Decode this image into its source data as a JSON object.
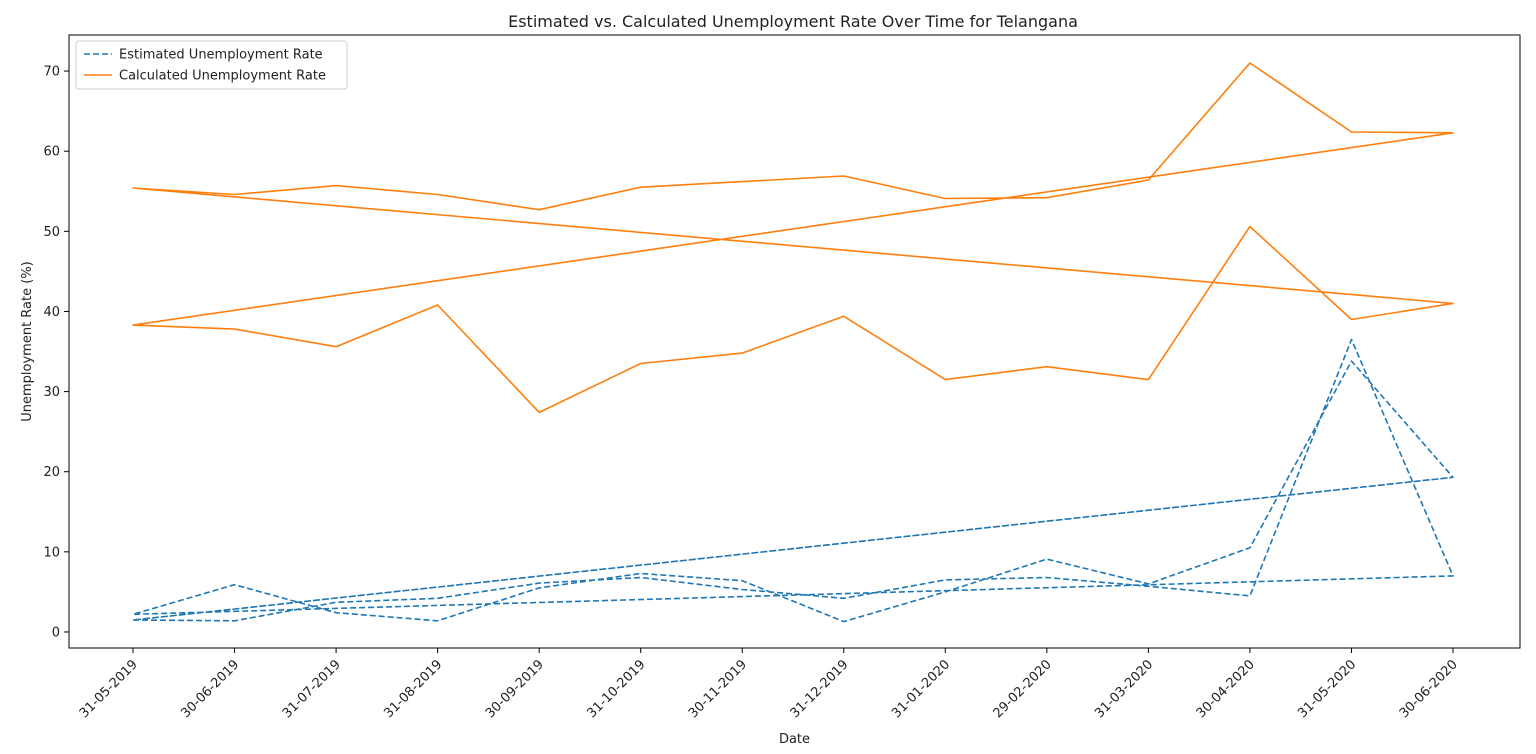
{
  "chart_data": {
    "type": "line",
    "title": "Estimated vs. Calculated Unemployment Rate Over Time for Telangana",
    "xlabel": "Date",
    "ylabel": "Unemployment Rate (%)",
    "ylim": [
      -2,
      74.5
    ],
    "yticks": [
      0,
      10,
      20,
      30,
      40,
      50,
      60,
      70
    ],
    "categories": [
      "31-05-2019",
      "30-06-2019",
      "31-07-2019",
      "31-08-2019",
      "30-09-2019",
      "31-10-2019",
      "30-11-2019",
      "31-12-2019",
      "31-01-2020",
      "29-02-2020",
      "31-03-2020",
      "30-04-2020",
      "31-05-2020",
      "30-06-2020"
    ],
    "grid": false,
    "legend_position": "top-left",
    "colors": {
      "estimated": "#1f77b4",
      "calculated": "#ff7f0e"
    },
    "series": [
      {
        "name": "Estimated Unemployment Rate",
        "style": "dashed",
        "color": "#1f77b4",
        "x": [
          "31-05-2019",
          "30-06-2019",
          "31-07-2019",
          "31-08-2019",
          "30-09-2019",
          "31-10-2019",
          "30-11-2019",
          "31-12-2019",
          "31-01-2020",
          "29-02-2020",
          "31-03-2020",
          "30-04-2020",
          "31-05-2020",
          "30-06-2020",
          "31-05-2019",
          "30-06-2019",
          "31-07-2019",
          "31-08-2019",
          "30-09-2019",
          "31-10-2019",
          "30-11-2019",
          "31-12-2019",
          "31-01-2020",
          "29-02-2020",
          "31-03-2020",
          "30-04-2020",
          "31-05-2020",
          "30-06-2020",
          "31-05-2019",
          "30-06-2020"
        ],
        "values": [
          1.5,
          1.4,
          3.7,
          4.2,
          6.1,
          6.8,
          5.3,
          4.2,
          6.5,
          6.8,
          5.7,
          4.5,
          36.5,
          7.0,
          2.2,
          5.9,
          2.4,
          1.4,
          5.5,
          7.3,
          6.4,
          1.3,
          5.0,
          9.1,
          6.0,
          10.5,
          33.8,
          19.3,
          1.5,
          19.3
        ]
      },
      {
        "name": "Calculated Unemployment Rate",
        "style": "solid",
        "color": "#ff7f0e",
        "x": [
          "31-05-2019",
          "30-06-2019",
          "31-07-2019",
          "31-08-2019",
          "30-09-2019",
          "31-10-2019",
          "30-11-2019",
          "31-12-2019",
          "31-01-2020",
          "29-02-2020",
          "31-03-2020",
          "30-04-2020",
          "31-05-2020",
          "30-06-2020",
          "31-05-2019",
          "30-06-2019",
          "31-07-2019",
          "31-08-2019",
          "30-09-2019",
          "31-10-2019",
          "30-11-2019",
          "31-12-2019",
          "31-01-2020",
          "29-02-2020",
          "31-03-2020",
          "30-04-2020",
          "31-05-2020",
          "30-06-2020",
          "31-05-2019",
          "30-06-2020"
        ],
        "values": [
          55.4,
          54.6,
          55.7,
          54.6,
          52.7,
          55.5,
          56.2,
          56.9,
          54.1,
          54.2,
          56.4,
          71.0,
          62.4,
          62.3,
          38.3,
          37.8,
          35.6,
          40.8,
          27.4,
          33.5,
          34.8,
          39.4,
          31.5,
          33.1,
          31.5,
          50.6,
          39.0,
          41.0,
          55.4,
          41.0
        ]
      }
    ]
  }
}
